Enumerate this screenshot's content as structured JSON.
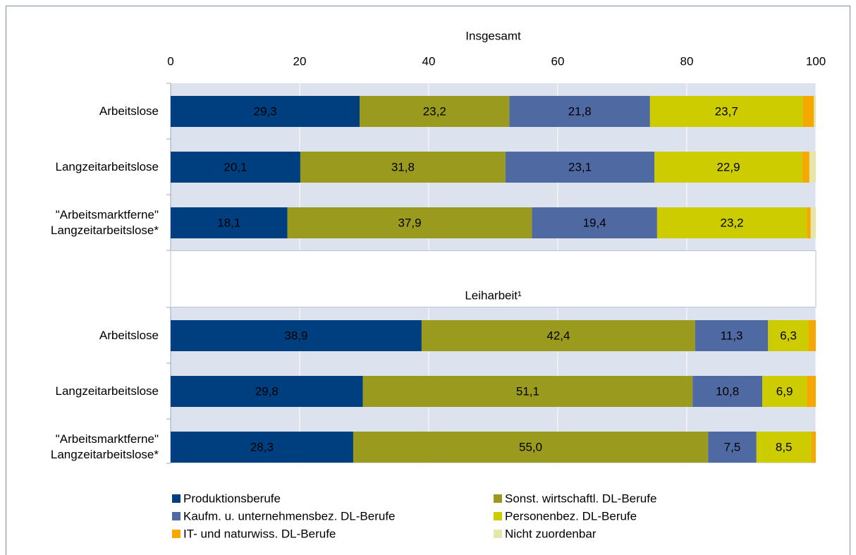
{
  "chart_data": [
    {
      "type": "bar",
      "orientation": "horizontal",
      "stacked": true,
      "title": "Insgesamt",
      "categories": [
        "Arbeitslose",
        "Langzeitarbeitslose",
        "\"Arbeitsmarktferne\"\nLangzeitarbeitslose*"
      ],
      "xlim": [
        0,
        100
      ],
      "xticks": [
        0,
        20,
        40,
        60,
        80,
        100
      ],
      "grid": true,
      "series": [
        {
          "name": "Produktionsberufe",
          "color": "#003f7f",
          "values": [
            29.3,
            20.1,
            18.1
          ],
          "value_labels": [
            "29,3",
            "20,1",
            "18,1"
          ]
        },
        {
          "name": "Sonst. wirtschaftl. DL-Berufe",
          "color": "#999a1e",
          "values": [
            23.2,
            31.8,
            37.9
          ],
          "value_labels": [
            "23,2",
            "31,8",
            "37,9"
          ]
        },
        {
          "name": "Kaufm. u. unternehmensbez. DL-Berufe",
          "color": "#4f6aa3",
          "values": [
            21.8,
            23.1,
            19.4
          ],
          "value_labels": [
            "21,8",
            "23,1",
            "19,4"
          ]
        },
        {
          "name": "Personenbez. DL-Berufe",
          "color": "#cccc00",
          "values": [
            23.7,
            22.9,
            23.2
          ],
          "value_labels": [
            "23,7",
            "22,9",
            "23,2"
          ]
        },
        {
          "name": "IT- und naturwiss. DL-Berufe",
          "color": "#f5a800",
          "values": [
            1.7,
            1.1,
            0.6
          ]
        },
        {
          "name": "Nicht zuordenbar",
          "color": "#e6e6a8",
          "values": [
            0.3,
            1.0,
            0.8
          ]
        }
      ]
    },
    {
      "type": "bar",
      "orientation": "horizontal",
      "stacked": true,
      "title": "Leiharbeit¹",
      "categories": [
        "Arbeitslose",
        "Langzeitarbeitslose",
        "\"Arbeitsmarktferne\"\nLangzeitarbeitslose*"
      ],
      "xlim": [
        0,
        100
      ],
      "xticks": [
        0,
        20,
        40,
        60,
        80,
        100
      ],
      "grid": true,
      "series": [
        {
          "name": "Produktionsberufe",
          "color": "#003f7f",
          "values": [
            38.9,
            29.8,
            28.3
          ],
          "value_labels": [
            "38,9",
            "29,8",
            "28,3"
          ]
        },
        {
          "name": "Sonst. wirtschaftl. DL-Berufe",
          "color": "#999a1e",
          "values": [
            42.4,
            51.1,
            55.0
          ],
          "value_labels": [
            "42,4",
            "51,1",
            "55,0"
          ]
        },
        {
          "name": "Kaufm. u. unternehmensbez. DL-Berufe",
          "color": "#4f6aa3",
          "values": [
            11.3,
            10.8,
            7.5
          ],
          "value_labels": [
            "11,3",
            "10,8",
            "7,5"
          ]
        },
        {
          "name": "Personenbez. DL-Berufe",
          "color": "#cccc00",
          "values": [
            6.3,
            6.9,
            8.5
          ],
          "value_labels": [
            "6,3",
            "6,9",
            "8,5"
          ]
        },
        {
          "name": "IT- und naturwiss. DL-Berufe",
          "color": "#f5a800",
          "values": [
            1.1,
            1.4,
            0.7
          ]
        },
        {
          "name": "Nicht zuordenbar",
          "color": "#e6e6a8",
          "values": [
            0,
            0,
            0
          ]
        }
      ]
    }
  ]
}
